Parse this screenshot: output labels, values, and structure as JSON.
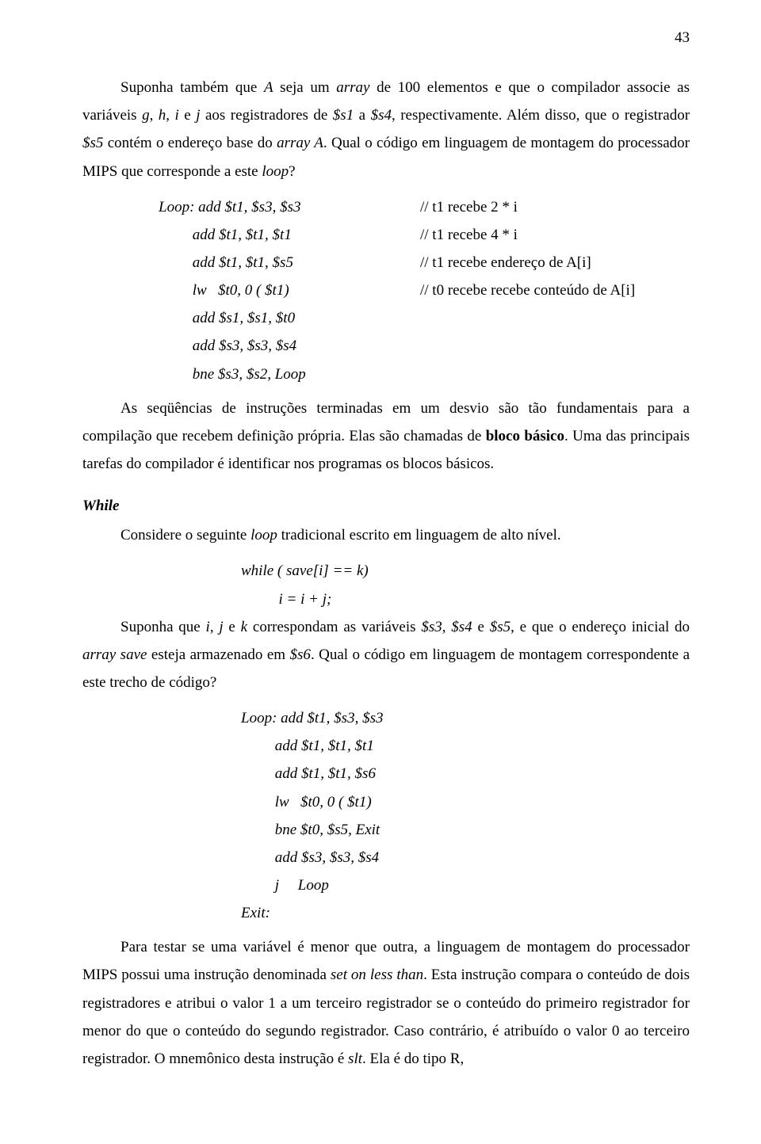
{
  "page_number": "43",
  "p1_a": "Suponha também que ",
  "p1_b": "A",
  "p1_c": " seja um ",
  "p1_d": "array",
  "p1_e": " de 100 elementos e que o compilador associe as variáveis ",
  "p1_f": "g",
  "p1_g": ", ",
  "p1_h": "h",
  "p1_i": ", ",
  "p1_j": "i",
  "p1_k": " e ",
  "p1_l": "j",
  "p1_m": " aos registradores de ",
  "p1_n": "$s1",
  "p1_o": " a ",
  "p1_p": "$s4",
  "p1_q": ", respectivamente. Além disso, que o registrador ",
  "p1_r": "$s5",
  "p1_s": " contém o endereço base do ",
  "p1_t": "array A",
  "p1_u": ". Qual o código em linguagem de montagem do processador  MIPS que corresponde a este ",
  "p1_v": "loop",
  "p1_w": "?",
  "code1": [
    {
      "l": "Loop: add $t1, $s3, $s3",
      "r": "// t1 recebe 2 * i"
    },
    {
      "l": "         add $t1, $t1, $t1",
      "r": "// t1 recebe 4 * i"
    },
    {
      "l": "         add $t1, $t1, $s5",
      "r": "// t1 recebe endereço de A[i]"
    },
    {
      "l": "         lw   $t0, 0 ( $t1)",
      "r": "// t0 recebe recebe conteúdo de A[i]"
    },
    {
      "l": "         add $s1, $s1, $t0",
      "r": ""
    },
    {
      "l": "         add $s3, $s3, $s4",
      "r": ""
    },
    {
      "l": "         bne $s3, $s2, Loop",
      "r": ""
    }
  ],
  "p2_a": "As seqüências de instruções terminadas em um desvio são tão fundamentais para a compilação que recebem definição própria. Elas são chamadas de ",
  "p2_b": "bloco básico",
  "p2_c": ". Uma das principais tarefas do compilador é identificar nos programas os blocos básicos.",
  "while_head": "While",
  "p3_a": "Considere o seguinte ",
  "p3_b": "loop",
  "p3_c": " tradicional escrito em linguagem de alto nível.",
  "wl1": "while ( save[i] == k)",
  "wl2": "          i = i + j;",
  "p4_a": "Suponha que ",
  "p4_b": "i",
  "p4_c": ", ",
  "p4_d": "j",
  "p4_e": " e ",
  "p4_f": "k",
  "p4_g": " correspondam as variáveis ",
  "p4_h": "$s3",
  "p4_i": ", ",
  "p4_j": "$s4",
  "p4_k": " e ",
  "p4_l": "$s5",
  "p4_m": ", e que o endereço inicial do ",
  "p4_n": "array save",
  "p4_o": " esteja armazenado em ",
  "p4_p": "$s6",
  "p4_q": ". Qual o código em linguagem de montagem correspondente a este trecho de código?",
  "code2": [
    "Loop: add $t1, $s3, $s3",
    "         add $t1, $t1, $t1",
    "         add $t1, $t1, $s6",
    "         lw   $t0, 0 ( $t1)",
    "         bne $t0, $s5, Exit",
    "         add $s3, $s3, $s4",
    "         j     Loop",
    "Exit:"
  ],
  "p5_a": "Para testar se uma variável é menor que outra, a linguagem de montagem do processador MIPS possui uma instrução denominada ",
  "p5_b": "set on less than",
  "p5_c": ". Esta instrução compara o conteúdo de dois registradores e atribui o valor 1 a um terceiro registrador se o conteúdo do primeiro registrador for menor do que o conteúdo do segundo registrador. Caso contrário, é atribuído o valor 0 ao terceiro registrador. O mnemônico desta instrução é ",
  "p5_d": "slt",
  "p5_e": ". Ela é do tipo R,"
}
